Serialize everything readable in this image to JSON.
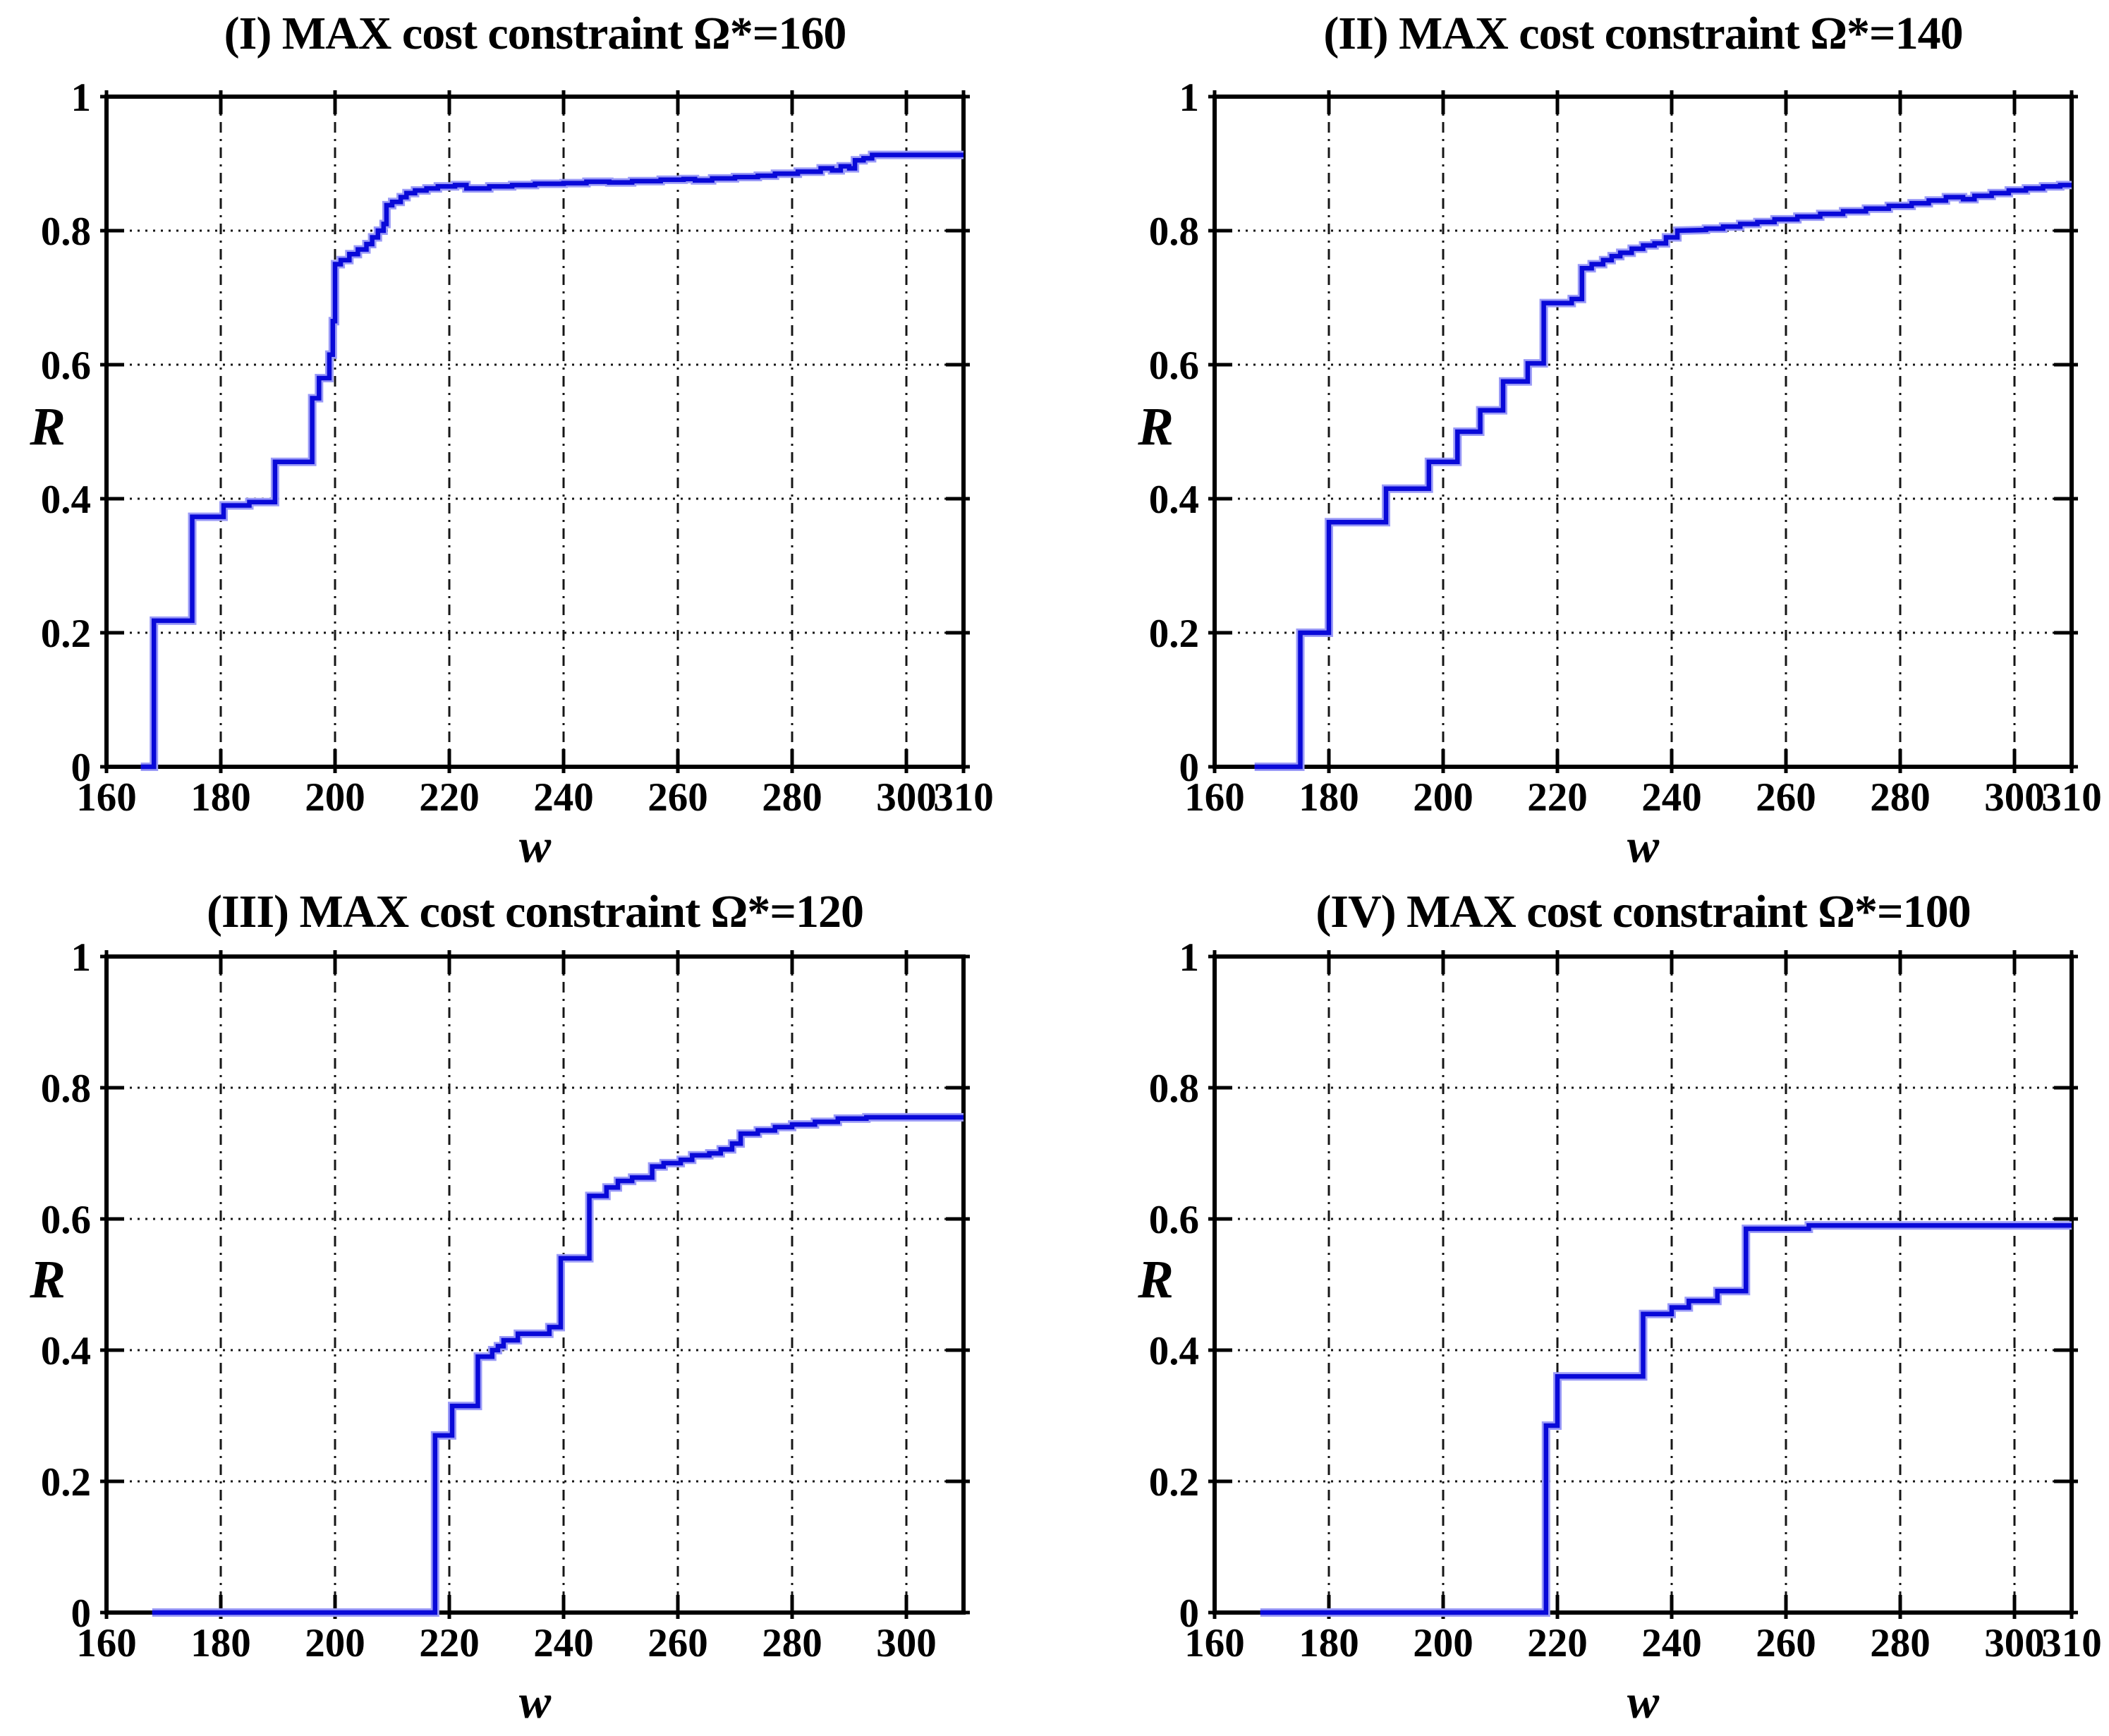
{
  "figure": {
    "background": "#ffffff",
    "colors": {
      "curve": "#0909d8",
      "curve_halo": "#9b9bf7",
      "grid": "#161616",
      "axis": "#000000",
      "text": "#000000"
    }
  },
  "chart_data": [
    {
      "id": "I",
      "type": "line",
      "style": "step",
      "title": "(I) MAX cost constraint Ω*=160",
      "xlabel": "w",
      "ylabel": "R",
      "xlim": [
        160,
        310
      ],
      "ylim": [
        0,
        1
      ],
      "grid": true,
      "xticks": [
        160,
        180,
        200,
        220,
        240,
        260,
        280,
        300,
        310
      ],
      "xtick_labels": [
        "160",
        "180",
        "200",
        "220",
        "240",
        "260",
        "280",
        "300",
        "310"
      ],
      "yticks": [
        0,
        0.2,
        0.4,
        0.6,
        0.8,
        1
      ],
      "ytick_labels": [
        "0",
        "0.2",
        "0.4",
        "0.6",
        "0.8",
        "1"
      ],
      "points": [
        [
          166,
          0
        ],
        [
          168.3,
          0
        ],
        [
          168.3,
          0.218
        ],
        [
          175,
          0.218
        ],
        [
          175,
          0.373
        ],
        [
          180.5,
          0.373
        ],
        [
          180.5,
          0.39
        ],
        [
          185,
          0.39
        ],
        [
          185,
          0.395
        ],
        [
          189.5,
          0.395
        ],
        [
          189.5,
          0.455
        ],
        [
          196,
          0.455
        ],
        [
          196,
          0.55
        ],
        [
          197.2,
          0.55
        ],
        [
          197.2,
          0.58
        ],
        [
          199,
          0.58
        ],
        [
          199,
          0.615
        ],
        [
          199.6,
          0.615
        ],
        [
          199.6,
          0.665
        ],
        [
          200,
          0.665
        ],
        [
          200,
          0.75
        ],
        [
          201,
          0.75
        ],
        [
          201,
          0.756
        ],
        [
          202.5,
          0.756
        ],
        [
          202.5,
          0.765
        ],
        [
          204,
          0.765
        ],
        [
          204,
          0.772
        ],
        [
          205.5,
          0.772
        ],
        [
          205.5,
          0.78
        ],
        [
          206.5,
          0.78
        ],
        [
          206.5,
          0.79
        ],
        [
          207.5,
          0.79
        ],
        [
          207.5,
          0.8
        ],
        [
          208.5,
          0.8
        ],
        [
          208.5,
          0.81
        ],
        [
          209,
          0.81
        ],
        [
          209,
          0.838
        ],
        [
          210,
          0.838
        ],
        [
          210,
          0.843
        ],
        [
          211.5,
          0.843
        ],
        [
          211.5,
          0.85
        ],
        [
          212.5,
          0.85
        ],
        [
          212.5,
          0.856
        ],
        [
          214,
          0.856
        ],
        [
          214,
          0.86
        ],
        [
          216,
          0.86
        ],
        [
          216,
          0.863
        ],
        [
          218,
          0.863
        ],
        [
          218,
          0.866
        ],
        [
          221,
          0.866
        ],
        [
          221,
          0.868
        ],
        [
          223,
          0.868
        ],
        [
          223,
          0.863
        ],
        [
          227,
          0.863
        ],
        [
          227,
          0.866
        ],
        [
          231,
          0.866
        ],
        [
          231,
          0.868
        ],
        [
          235,
          0.868
        ],
        [
          235,
          0.87
        ],
        [
          240,
          0.87
        ],
        [
          240,
          0.871
        ],
        [
          244,
          0.871
        ],
        [
          244,
          0.873
        ],
        [
          248,
          0.873
        ],
        [
          248,
          0.872
        ],
        [
          252,
          0.872
        ],
        [
          252,
          0.874
        ],
        [
          257,
          0.874
        ],
        [
          257,
          0.876
        ],
        [
          261,
          0.876
        ],
        [
          261,
          0.877
        ],
        [
          263,
          0.877
        ],
        [
          263,
          0.875
        ],
        [
          266,
          0.875
        ],
        [
          266,
          0.878
        ],
        [
          270,
          0.878
        ],
        [
          270,
          0.88
        ],
        [
          274,
          0.88
        ],
        [
          274,
          0.882
        ],
        [
          277,
          0.882
        ],
        [
          277,
          0.885
        ],
        [
          281,
          0.885
        ],
        [
          281,
          0.888
        ],
        [
          285,
          0.888
        ],
        [
          285,
          0.893
        ],
        [
          287,
          0.893
        ],
        [
          287,
          0.89
        ],
        [
          288.5,
          0.89
        ],
        [
          288.5,
          0.896
        ],
        [
          290,
          0.896
        ],
        [
          290,
          0.893
        ],
        [
          291,
          0.893
        ],
        [
          291,
          0.905
        ],
        [
          292.5,
          0.905
        ],
        [
          292.5,
          0.908
        ],
        [
          294,
          0.908
        ],
        [
          294,
          0.913
        ],
        [
          310,
          0.913
        ]
      ]
    },
    {
      "id": "II",
      "type": "line",
      "style": "step",
      "title": "(II) MAX cost constraint Ω*=140",
      "xlabel": "w",
      "ylabel": "R",
      "xlim": [
        160,
        310
      ],
      "ylim": [
        0,
        1
      ],
      "grid": true,
      "xticks": [
        160,
        180,
        200,
        220,
        240,
        260,
        280,
        300,
        310
      ],
      "xtick_labels": [
        "160",
        "180",
        "200",
        "220",
        "240",
        "260",
        "280",
        "300",
        "310"
      ],
      "yticks": [
        0,
        0.2,
        0.4,
        0.6,
        0.8,
        1
      ],
      "ytick_labels": [
        "0",
        "0.2",
        "0.4",
        "0.6",
        "0.8",
        "1"
      ],
      "points": [
        [
          167,
          0
        ],
        [
          175,
          0
        ],
        [
          175,
          0.2
        ],
        [
          180,
          0.2
        ],
        [
          180,
          0.365
        ],
        [
          190,
          0.365
        ],
        [
          190,
          0.415
        ],
        [
          197.5,
          0.415
        ],
        [
          197.5,
          0.455
        ],
        [
          202.5,
          0.455
        ],
        [
          202.5,
          0.5
        ],
        [
          206.5,
          0.5
        ],
        [
          206.5,
          0.532
        ],
        [
          210.5,
          0.532
        ],
        [
          210.5,
          0.575
        ],
        [
          214.8,
          0.575
        ],
        [
          214.8,
          0.602
        ],
        [
          217.6,
          0.602
        ],
        [
          217.6,
          0.692
        ],
        [
          222.5,
          0.692
        ],
        [
          222.5,
          0.698
        ],
        [
          224.3,
          0.698
        ],
        [
          224.3,
          0.744
        ],
        [
          226,
          0.744
        ],
        [
          226,
          0.75
        ],
        [
          228,
          0.75
        ],
        [
          228,
          0.756
        ],
        [
          229.5,
          0.756
        ],
        [
          229.5,
          0.762
        ],
        [
          231,
          0.762
        ],
        [
          231,
          0.767
        ],
        [
          233,
          0.767
        ],
        [
          233,
          0.773
        ],
        [
          235,
          0.773
        ],
        [
          235,
          0.778
        ],
        [
          237,
          0.778
        ],
        [
          237,
          0.781
        ],
        [
          239,
          0.781
        ],
        [
          239,
          0.79
        ],
        [
          241,
          0.79
        ],
        [
          241,
          0.8
        ],
        [
          246,
          0.801
        ],
        [
          246,
          0.803
        ],
        [
          249,
          0.803
        ],
        [
          249,
          0.806
        ],
        [
          252,
          0.806
        ],
        [
          252,
          0.81
        ],
        [
          255,
          0.81
        ],
        [
          255,
          0.813
        ],
        [
          258,
          0.813
        ],
        [
          258,
          0.817
        ],
        [
          262,
          0.817
        ],
        [
          262,
          0.821
        ],
        [
          266,
          0.821
        ],
        [
          266,
          0.825
        ],
        [
          270,
          0.825
        ],
        [
          270,
          0.829
        ],
        [
          274,
          0.829
        ],
        [
          274,
          0.833
        ],
        [
          278,
          0.833
        ],
        [
          278,
          0.837
        ],
        [
          282,
          0.837
        ],
        [
          282,
          0.841
        ],
        [
          285,
          0.841
        ],
        [
          285,
          0.845
        ],
        [
          288,
          0.845
        ],
        [
          288,
          0.85
        ],
        [
          291,
          0.85
        ],
        [
          291,
          0.847
        ],
        [
          293,
          0.847
        ],
        [
          293,
          0.852
        ],
        [
          296,
          0.852
        ],
        [
          296,
          0.856
        ],
        [
          299,
          0.856
        ],
        [
          299,
          0.86
        ],
        [
          302,
          0.86
        ],
        [
          302,
          0.863
        ],
        [
          305,
          0.863
        ],
        [
          305,
          0.866
        ],
        [
          308,
          0.866
        ],
        [
          308,
          0.868
        ],
        [
          310,
          0.868
        ]
      ]
    },
    {
      "id": "III",
      "type": "line",
      "style": "step",
      "title": "(III) MAX cost constraint Ω*=120",
      "xlabel": "w",
      "ylabel": "R",
      "xlim": [
        160,
        310
      ],
      "ylim": [
        0,
        1
      ],
      "grid": true,
      "xticks": [
        160,
        180,
        200,
        220,
        240,
        260,
        280,
        300
      ],
      "xtick_labels": [
        "160",
        "180",
        "200",
        "220",
        "240",
        "260",
        "280",
        "300"
      ],
      "yticks": [
        0,
        0.2,
        0.4,
        0.6,
        0.8,
        1
      ],
      "ytick_labels": [
        "0",
        "0.2",
        "0.4",
        "0.6",
        "0.8",
        "1"
      ],
      "points": [
        [
          168,
          0
        ],
        [
          217.5,
          0
        ],
        [
          217.5,
          0.27
        ],
        [
          220.5,
          0.27
        ],
        [
          220.5,
          0.315
        ],
        [
          225,
          0.315
        ],
        [
          225,
          0.39
        ],
        [
          227.5,
          0.39
        ],
        [
          227.5,
          0.4
        ],
        [
          228.5,
          0.4
        ],
        [
          228.5,
          0.406
        ],
        [
          229.5,
          0.406
        ],
        [
          229.5,
          0.415
        ],
        [
          232,
          0.415
        ],
        [
          232,
          0.425
        ],
        [
          237.5,
          0.425
        ],
        [
          237.5,
          0.435
        ],
        [
          239.5,
          0.435
        ],
        [
          239.5,
          0.54
        ],
        [
          244.5,
          0.54
        ],
        [
          244.5,
          0.635
        ],
        [
          247.5,
          0.635
        ],
        [
          247.5,
          0.648
        ],
        [
          249.5,
          0.648
        ],
        [
          249.5,
          0.658
        ],
        [
          252,
          0.658
        ],
        [
          252,
          0.663
        ],
        [
          255.5,
          0.663
        ],
        [
          255.5,
          0.68
        ],
        [
          257.5,
          0.68
        ],
        [
          257.5,
          0.685
        ],
        [
          260.5,
          0.685
        ],
        [
          260.5,
          0.69
        ],
        [
          262.5,
          0.69
        ],
        [
          262.5,
          0.697
        ],
        [
          265.5,
          0.697
        ],
        [
          265.5,
          0.7
        ],
        [
          267.5,
          0.7
        ],
        [
          267.5,
          0.706
        ],
        [
          269.5,
          0.706
        ],
        [
          269.5,
          0.715
        ],
        [
          271,
          0.715
        ],
        [
          271,
          0.73
        ],
        [
          274,
          0.73
        ],
        [
          274,
          0.735
        ],
        [
          277,
          0.735
        ],
        [
          277,
          0.74
        ],
        [
          280,
          0.74
        ],
        [
          280,
          0.744
        ],
        [
          284,
          0.744
        ],
        [
          284,
          0.748
        ],
        [
          288,
          0.748
        ],
        [
          288,
          0.753
        ],
        [
          293,
          0.753
        ],
        [
          293,
          0.755
        ],
        [
          310,
          0.755
        ]
      ]
    },
    {
      "id": "IV",
      "type": "line",
      "style": "step",
      "title": "(IV) MAX cost constraint Ω*=100",
      "xlabel": "w",
      "ylabel": "R",
      "xlim": [
        160,
        310
      ],
      "ylim": [
        0,
        1
      ],
      "grid": true,
      "xticks": [
        160,
        180,
        200,
        220,
        240,
        260,
        280,
        300,
        310
      ],
      "xtick_labels": [
        "160",
        "180",
        "200",
        "220",
        "240",
        "260",
        "280",
        "300",
        "310"
      ],
      "yticks": [
        0,
        0.2,
        0.4,
        0.6,
        0.8,
        1
      ],
      "ytick_labels": [
        "0",
        "0.2",
        "0.4",
        "0.6",
        "0.8",
        "1"
      ],
      "points": [
        [
          168,
          0
        ],
        [
          218,
          0
        ],
        [
          218,
          0.285
        ],
        [
          220,
          0.285
        ],
        [
          220,
          0.36
        ],
        [
          235,
          0.36
        ],
        [
          235,
          0.455
        ],
        [
          240,
          0.455
        ],
        [
          240,
          0.465
        ],
        [
          243,
          0.465
        ],
        [
          243,
          0.475
        ],
        [
          248,
          0.475
        ],
        [
          248,
          0.49
        ],
        [
          253,
          0.49
        ],
        [
          253,
          0.585
        ],
        [
          264,
          0.585
        ],
        [
          264,
          0.59
        ],
        [
          310,
          0.59
        ]
      ]
    }
  ]
}
